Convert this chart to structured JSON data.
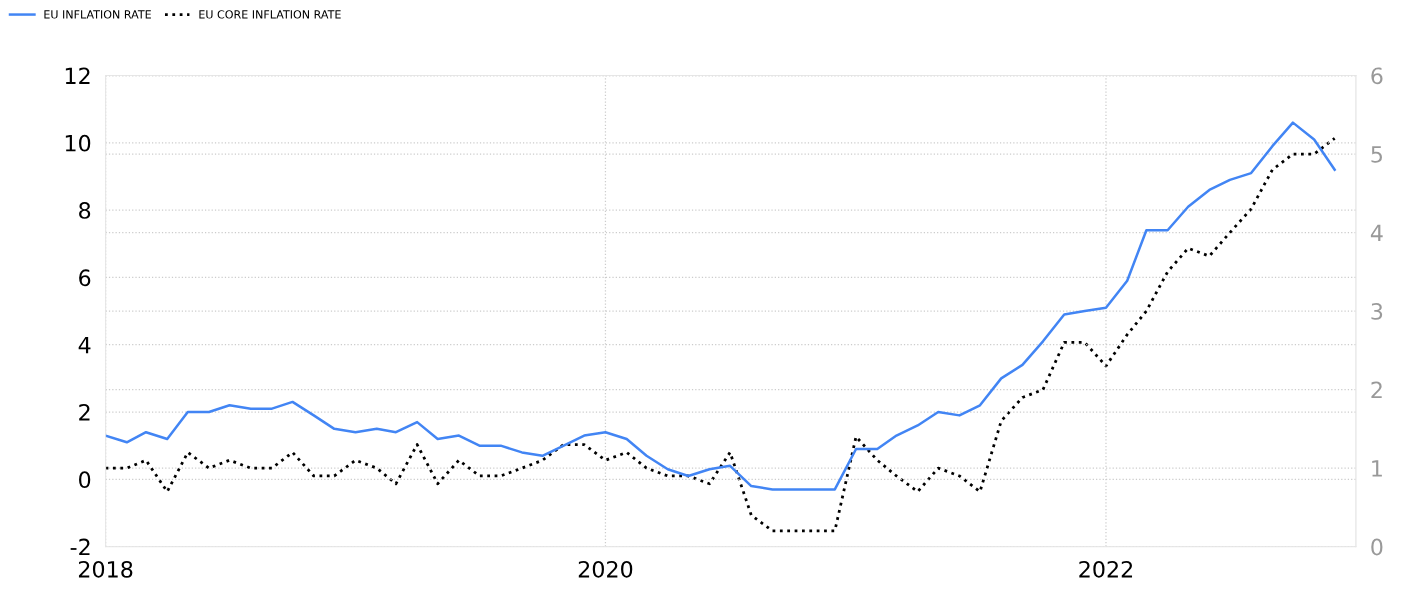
{
  "chart_data": {
    "type": "line",
    "x": [
      "2018-01",
      "2018-02",
      "2018-03",
      "2018-04",
      "2018-05",
      "2018-06",
      "2018-07",
      "2018-08",
      "2018-09",
      "2018-10",
      "2018-11",
      "2018-12",
      "2019-01",
      "2019-02",
      "2019-03",
      "2019-04",
      "2019-05",
      "2019-06",
      "2019-07",
      "2019-08",
      "2019-09",
      "2019-10",
      "2019-11",
      "2019-12",
      "2020-01",
      "2020-02",
      "2020-03",
      "2020-04",
      "2020-05",
      "2020-06",
      "2020-07",
      "2020-08",
      "2020-09",
      "2020-10",
      "2020-11",
      "2020-12",
      "2021-01",
      "2021-02",
      "2021-03",
      "2021-04",
      "2021-05",
      "2021-06",
      "2021-07",
      "2021-08",
      "2021-09",
      "2021-10",
      "2021-11",
      "2021-12",
      "2022-01",
      "2022-02",
      "2022-03",
      "2022-04",
      "2022-05",
      "2022-06",
      "2022-07",
      "2022-08",
      "2022-09",
      "2022-10",
      "2022-11",
      "2022-12"
    ],
    "series": [
      {
        "name": "EU INFLATION RATE",
        "color": "#4285f4",
        "line_style": "solid",
        "values": [
          1.3,
          1.1,
          1.4,
          1.2,
          2.0,
          2.0,
          2.2,
          2.1,
          2.1,
          2.3,
          1.9,
          1.5,
          1.4,
          1.5,
          1.4,
          1.7,
          1.2,
          1.3,
          1.0,
          1.0,
          0.8,
          0.7,
          1.0,
          1.3,
          1.4,
          1.2,
          0.7,
          0.3,
          0.1,
          0.3,
          0.4,
          -0.2,
          -0.3,
          -0.3,
          -0.3,
          -0.3,
          0.9,
          0.9,
          1.3,
          1.6,
          2.0,
          1.9,
          2.2,
          3.0,
          3.4,
          4.1,
          4.9,
          5.0,
          5.1,
          5.9,
          7.4,
          7.4,
          8.1,
          8.6,
          8.9,
          9.1,
          9.9,
          10.6,
          10.1,
          9.2
        ]
      },
      {
        "name": "EU CORE INFLATION RATE",
        "color": "#000000",
        "line_style": "dotted",
        "axis": "y2",
        "values": [
          1.0,
          1.0,
          1.1,
          0.7,
          1.2,
          1.0,
          1.1,
          1.0,
          1.0,
          1.2,
          0.9,
          0.9,
          1.1,
          1.0,
          0.8,
          1.3,
          0.8,
          1.1,
          0.9,
          0.9,
          1.0,
          1.1,
          1.3,
          1.3,
          1.1,
          1.2,
          1.0,
          0.9,
          0.9,
          0.8,
          1.2,
          0.4,
          0.2,
          0.2,
          0.2,
          0.2,
          1.4,
          1.1,
          0.9,
          0.7,
          1.0,
          0.9,
          0.7,
          1.6,
          1.9,
          2.0,
          2.6,
          2.6,
          2.3,
          2.7,
          3.0,
          3.5,
          3.8,
          3.7,
          4.0,
          4.3,
          4.8,
          5.0,
          5.0,
          5.2
        ]
      }
    ],
    "xlim": [
      "2018-01",
      "2023-01"
    ],
    "xticks": [
      "2018",
      "2020",
      "2022"
    ],
    "ylim": [
      -2,
      12
    ],
    "yticks": [
      -2,
      0,
      2,
      4,
      6,
      8,
      10,
      12
    ],
    "y2lim": [
      0,
      6
    ],
    "y2ticks": [
      0,
      1,
      2,
      3,
      4,
      5,
      6
    ],
    "grid": true,
    "legend": "top left",
    "marker": "none"
  }
}
